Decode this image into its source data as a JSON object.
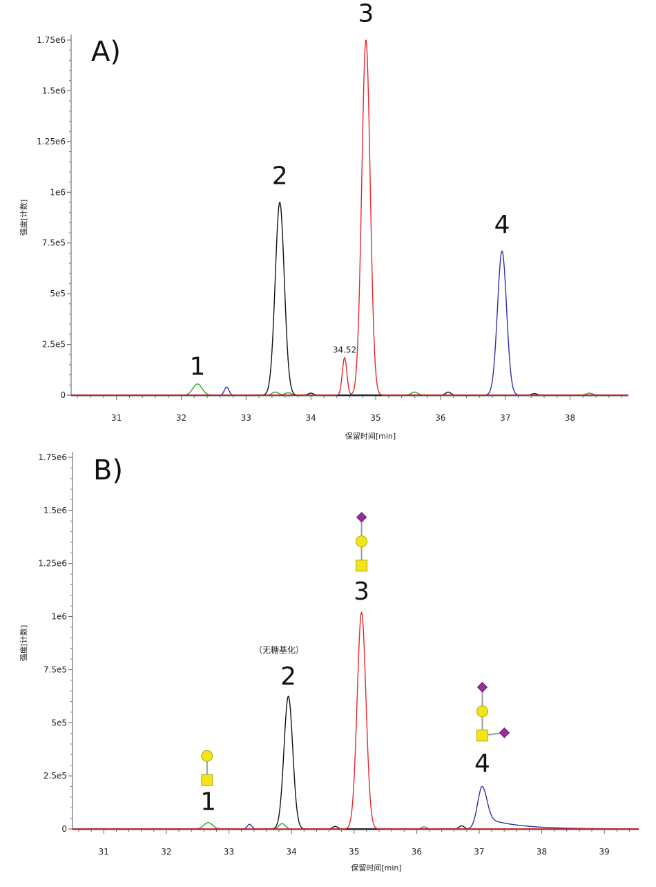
{
  "chart_data": [
    {
      "type": "line",
      "panel_label": "A)",
      "xlabel": "保留时间[min]",
      "ylabel": "强度[计数]",
      "xlim": [
        30.3,
        38.9
      ],
      "ylim": [
        0,
        1750000
      ],
      "x_ticks": [
        31,
        32,
        33,
        34,
        35,
        36,
        37,
        38
      ],
      "y_ticks": [
        {
          "value": 0,
          "label": "0"
        },
        {
          "value": 250000,
          "label": "2.5e5"
        },
        {
          "value": 500000,
          "label": "5e5"
        },
        {
          "value": 750000,
          "label": "7.5e5"
        },
        {
          "value": 1000000,
          "label": "1e6"
        },
        {
          "value": 1250000,
          "label": "1.25e6"
        },
        {
          "value": 1500000,
          "label": "1.5e6"
        },
        {
          "value": 1750000,
          "label": "1.75e6"
        }
      ],
      "series": [
        {
          "color": "#2ca02c",
          "peaks": [
            {
              "rt": 32.25,
              "height": 55000,
              "width": 0.07
            },
            {
              "rt": 33.45,
              "height": 15000,
              "width": 0.05
            },
            {
              "rt": 33.65,
              "height": 12000,
              "width": 0.05
            },
            {
              "rt": 35.6,
              "height": 15000,
              "width": 0.05
            },
            {
              "rt": 38.3,
              "height": 10000,
              "width": 0.05
            }
          ]
        },
        {
          "color": "#2f2fa8",
          "peaks": [
            {
              "rt": 32.7,
              "height": 40000,
              "width": 0.035
            },
            {
              "rt": 36.95,
              "height": 710000,
              "width": 0.07
            }
          ]
        },
        {
          "color": "#111111",
          "peaks": [
            {
              "rt": 33.52,
              "height": 950000,
              "width": 0.07
            },
            {
              "rt": 34.0,
              "height": 10000,
              "width": 0.04
            },
            {
              "rt": 36.12,
              "height": 15000,
              "width": 0.04
            },
            {
              "rt": 37.45,
              "height": 8000,
              "width": 0.04
            }
          ]
        },
        {
          "color": "#e8262a",
          "peaks": [
            {
              "rt": 34.52,
              "height": 185000,
              "width": 0.035
            },
            {
              "rt": 34.85,
              "height": 1750000,
              "width": 0.065
            }
          ]
        }
      ],
      "peak_labels": [
        {
          "text": "1",
          "rt": 32.25,
          "y": 100000
        },
        {
          "text": "2",
          "rt": 33.52,
          "y": 1040000
        },
        {
          "text": "3",
          "rt": 34.85,
          "y": 1840000
        },
        {
          "text": "4",
          "rt": 36.95,
          "y": 800000
        }
      ],
      "annotations": [
        {
          "text": "34.52",
          "rt": 34.52,
          "y": 210000
        }
      ]
    },
    {
      "type": "line",
      "panel_label": "B)",
      "xlabel": "保留时间[min]",
      "ylabel": "强度[计数]",
      "xlim": [
        30.5,
        39.55
      ],
      "ylim": [
        0,
        1750000
      ],
      "x_ticks": [
        31,
        32,
        33,
        34,
        35,
        36,
        37,
        38,
        39
      ],
      "y_ticks": [
        {
          "value": 0,
          "label": "0"
        },
        {
          "value": 250000,
          "label": "2.5e5"
        },
        {
          "value": 500000,
          "label": "5e5"
        },
        {
          "value": 750000,
          "label": "7.5e5"
        },
        {
          "value": 1000000,
          "label": "1e6"
        },
        {
          "value": 1250000,
          "label": "1.25e6"
        },
        {
          "value": 1500000,
          "label": "1.5e6"
        },
        {
          "value": 1750000,
          "label": "1.75e6"
        }
      ],
      "series": [
        {
          "color": "#2ca02c",
          "peaks": [
            {
              "rt": 32.67,
              "height": 30000,
              "width": 0.07
            },
            {
              "rt": 33.85,
              "height": 25000,
              "width": 0.05
            },
            {
              "rt": 36.12,
              "height": 10000,
              "width": 0.04
            }
          ]
        },
        {
          "color": "#2f2fa8",
          "peaks": [
            {
              "rt": 33.33,
              "height": 22000,
              "width": 0.035
            },
            {
              "rt": 37.05,
              "height": 200000,
              "width": 0.075,
              "tail": 0.5
            }
          ]
        },
        {
          "color": "#111111",
          "peaks": [
            {
              "rt": 33.95,
              "height": 625000,
              "width": 0.07
            },
            {
              "rt": 34.7,
              "height": 12000,
              "width": 0.04
            },
            {
              "rt": 36.72,
              "height": 15000,
              "width": 0.04
            }
          ]
        },
        {
          "color": "#e8262a",
          "peaks": [
            {
              "rt": 35.12,
              "height": 1020000,
              "width": 0.07
            }
          ]
        }
      ],
      "peak_labels": [
        {
          "text": "1",
          "rt": 32.67,
          "y": 90000
        },
        {
          "text": "2",
          "rt": 33.95,
          "y": 680000
        },
        {
          "text": "3",
          "rt": 35.12,
          "y": 1080000
        },
        {
          "text": "4",
          "rt": 37.05,
          "y": 270000
        }
      ],
      "annotations": [
        {
          "text": "（无糖基化）",
          "rt": 33.8,
          "y": 830000
        }
      ],
      "glycans": [
        {
          "rt": 32.65,
          "base_y": 230000,
          "stack": [
            "square",
            "circle"
          ]
        },
        {
          "rt": 35.12,
          "base_y": 1240000,
          "stack": [
            "square",
            "circle",
            "diamond"
          ]
        },
        {
          "rt": 37.05,
          "base_y": 440000,
          "stack": [
            "square",
            "circle",
            "diamond"
          ],
          "branch": "diamond"
        }
      ]
    }
  ]
}
